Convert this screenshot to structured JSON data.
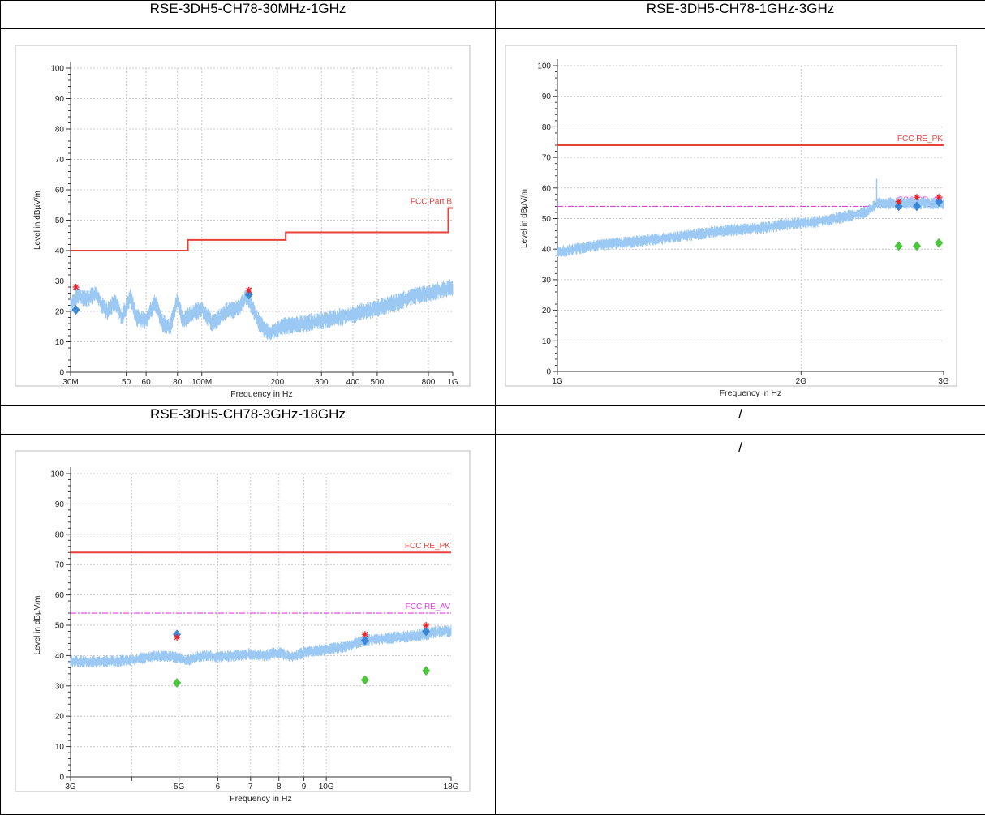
{
  "table": {
    "headers": [
      "RSE-3DH5-CH78-30MHz-1GHz",
      "RSE-3DH5-CH78-1GHz-3GHz",
      "RSE-3DH5-CH78-3GHz-18GHz",
      "/"
    ],
    "empty_cell_text": "/"
  },
  "colors": {
    "limit": "#e8413c",
    "limit_label": "#e8413c",
    "avg_limit": "#e040e0",
    "trace": "#9cc8f4",
    "peak_marker": "#e8262a",
    "qp_marker": "#3b88d6",
    "avg_marker": "#4cc63c",
    "grid": "#c8c8c8"
  },
  "chart_data": [
    {
      "type": "line",
      "xscale": "log",
      "xlim": [
        30000000,
        1000000000
      ],
      "ylim": [
        0,
        100
      ],
      "xlabel": "Frequency in Hz",
      "ylabel": "Level in dBµV/m",
      "yticks": [
        0,
        10,
        20,
        30,
        40,
        50,
        60,
        70,
        80,
        90,
        100
      ],
      "xticks": [
        {
          "v": 30000000,
          "l": "30M"
        },
        {
          "v": 50000000,
          "l": "50"
        },
        {
          "v": 60000000,
          "l": "60"
        },
        {
          "v": 80000000,
          "l": "80"
        },
        {
          "v": 100000000,
          "l": "100M"
        },
        {
          "v": 200000000,
          "l": "200"
        },
        {
          "v": 300000000,
          "l": "300"
        },
        {
          "v": 400000000,
          "l": "400"
        },
        {
          "v": 500000000,
          "l": "500"
        },
        {
          "v": 800000000,
          "l": "800"
        },
        {
          "v": 1000000000,
          "l": "1G"
        }
      ],
      "limits": [
        {
          "name": "FCC Part B",
          "kind": "pk",
          "points": [
            [
              30000000,
              40
            ],
            [
              88000000,
              40
            ],
            [
              88000000,
              43.5
            ],
            [
              216000000,
              43.5
            ],
            [
              216000000,
              46
            ],
            [
              960000000,
              46
            ],
            [
              960000000,
              54
            ],
            [
              1000000000,
              54
            ]
          ]
        }
      ],
      "trace": [
        [
          30000000,
          22
        ],
        [
          32000000,
          25
        ],
        [
          35000000,
          24
        ],
        [
          38000000,
          26
        ],
        [
          40000000,
          22
        ],
        [
          42000000,
          20
        ],
        [
          45000000,
          23
        ],
        [
          48000000,
          18
        ],
        [
          52000000,
          25
        ],
        [
          55000000,
          18
        ],
        [
          60000000,
          17
        ],
        [
          65000000,
          23
        ],
        [
          70000000,
          16
        ],
        [
          75000000,
          15
        ],
        [
          80000000,
          24
        ],
        [
          84000000,
          17
        ],
        [
          90000000,
          19
        ],
        [
          100000000,
          21
        ],
        [
          110000000,
          16
        ],
        [
          125000000,
          20
        ],
        [
          140000000,
          21
        ],
        [
          150000000,
          25
        ],
        [
          158000000,
          22
        ],
        [
          170000000,
          16
        ],
        [
          185000000,
          13
        ],
        [
          210000000,
          15
        ],
        [
          250000000,
          16
        ],
        [
          300000000,
          17
        ],
        [
          400000000,
          19
        ],
        [
          500000000,
          21
        ],
        [
          600000000,
          23
        ],
        [
          700000000,
          25
        ],
        [
          800000000,
          26
        ],
        [
          900000000,
          27
        ],
        [
          1000000000,
          28
        ]
      ],
      "trace_band": 3,
      "peak": [
        [
          31500000,
          28
        ],
        [
          154000000,
          27
        ]
      ],
      "qp": [
        [
          31500000,
          20.5
        ],
        [
          154000000,
          25.5
        ]
      ],
      "avg": []
    },
    {
      "type": "line",
      "xscale": "log",
      "xlim": [
        1000000000,
        3000000000
      ],
      "ylim": [
        0,
        100
      ],
      "xlabel": "Frequency in Hz",
      "ylabel": "Level in dBµV/m",
      "yticks": [
        0,
        10,
        20,
        30,
        40,
        50,
        60,
        70,
        80,
        90,
        100
      ],
      "xticks": [
        {
          "v": 1000000000,
          "l": "1G"
        },
        {
          "v": 2000000000,
          "l": "2G"
        },
        {
          "v": 3000000000,
          "l": "3G"
        }
      ],
      "limits": [
        {
          "name": "FCC RE_PK",
          "kind": "pk",
          "points": [
            [
              1000000000,
              74
            ],
            [
              3000000000,
              74
            ]
          ]
        },
        {
          "name": "FCC RE_AV",
          "kind": "av",
          "points": [
            [
              1000000000,
              54
            ],
            [
              3000000000,
              54
            ]
          ]
        }
      ],
      "trace": [
        [
          1000000000,
          39
        ],
        [
          1100000000,
          41
        ],
        [
          1200000000,
          42
        ],
        [
          1300000000,
          43
        ],
        [
          1400000000,
          44
        ],
        [
          1500000000,
          45
        ],
        [
          1600000000,
          46
        ],
        [
          1700000000,
          46.5
        ],
        [
          1800000000,
          47
        ],
        [
          1900000000,
          48
        ],
        [
          2000000000,
          48.5
        ],
        [
          2100000000,
          49
        ],
        [
          2200000000,
          50
        ],
        [
          2300000000,
          51
        ],
        [
          2400000000,
          52
        ],
        [
          2450000000,
          53.5
        ],
        [
          2480000000,
          55
        ],
        [
          2550000000,
          55
        ],
        [
          2700000000,
          55
        ],
        [
          2900000000,
          55
        ],
        [
          3000000000,
          55
        ]
      ],
      "trace_band": 2,
      "spike": [
        2480000000,
        63
      ],
      "peak": [
        [
          2640000000,
          55.5
        ],
        [
          2780000000,
          57
        ],
        [
          2960000000,
          57
        ]
      ],
      "qp": [
        [
          2640000000,
          54
        ],
        [
          2780000000,
          54
        ],
        [
          2960000000,
          55.5
        ]
      ],
      "avg": [
        [
          2640000000,
          41
        ],
        [
          2780000000,
          41
        ],
        [
          2960000000,
          42
        ]
      ]
    },
    {
      "type": "line",
      "xscale": "log",
      "xlim": [
        3000000000,
        18000000000
      ],
      "ylim": [
        0,
        100
      ],
      "xlabel": "Frequency in Hz",
      "ylabel": "Level in dBµV/m",
      "yticks": [
        0,
        10,
        20,
        30,
        40,
        50,
        60,
        70,
        80,
        90,
        100
      ],
      "xticks": [
        {
          "v": 3000000000,
          "l": "3G"
        },
        {
          "v": 5000000000,
          "l": "5G"
        },
        {
          "v": 6000000000,
          "l": "6"
        },
        {
          "v": 7000000000,
          "l": "7"
        },
        {
          "v": 8000000000,
          "l": "8"
        },
        {
          "v": 9000000000,
          "l": "9"
        },
        {
          "v": 10000000000,
          "l": "10G"
        },
        {
          "v": 18000000000,
          "l": "18G"
        }
      ],
      "minor_xticks": [
        4000000000
      ],
      "limits": [
        {
          "name": "FCC RE_PK",
          "kind": "pk",
          "points": [
            [
              3000000000,
              74
            ],
            [
              18000000000,
              74
            ]
          ]
        },
        {
          "name": "FCC RE_AV",
          "kind": "av",
          "points": [
            [
              3000000000,
              54
            ],
            [
              18000000000,
              54
            ]
          ]
        }
      ],
      "trace": [
        [
          3000000000,
          38
        ],
        [
          3500000000,
          38
        ],
        [
          4000000000,
          38.5
        ],
        [
          4500000000,
          40
        ],
        [
          4900000000,
          39.5
        ],
        [
          5200000000,
          38.5
        ],
        [
          5600000000,
          40
        ],
        [
          6000000000,
          39.5
        ],
        [
          6500000000,
          40
        ],
        [
          7000000000,
          40.5
        ],
        [
          7500000000,
          40
        ],
        [
          8000000000,
          41
        ],
        [
          8500000000,
          39.5
        ],
        [
          9000000000,
          41
        ],
        [
          9500000000,
          41.5
        ],
        [
          10000000000,
          42
        ],
        [
          11000000000,
          43
        ],
        [
          12000000000,
          45
        ],
        [
          13000000000,
          45.5
        ],
        [
          14000000000,
          46
        ],
        [
          15000000000,
          46.5
        ],
        [
          16000000000,
          47
        ],
        [
          17000000000,
          48
        ],
        [
          18000000000,
          48
        ]
      ],
      "trace_band": 2,
      "peak": [
        [
          4950000000,
          46
        ],
        [
          12000000000,
          47
        ],
        [
          16000000000,
          50
        ]
      ],
      "qp": [
        [
          4950000000,
          47
        ],
        [
          12000000000,
          45
        ],
        [
          16000000000,
          48
        ]
      ],
      "avg": [
        [
          4950000000,
          31
        ],
        [
          12000000000,
          32
        ],
        [
          16000000000,
          35
        ]
      ]
    }
  ]
}
